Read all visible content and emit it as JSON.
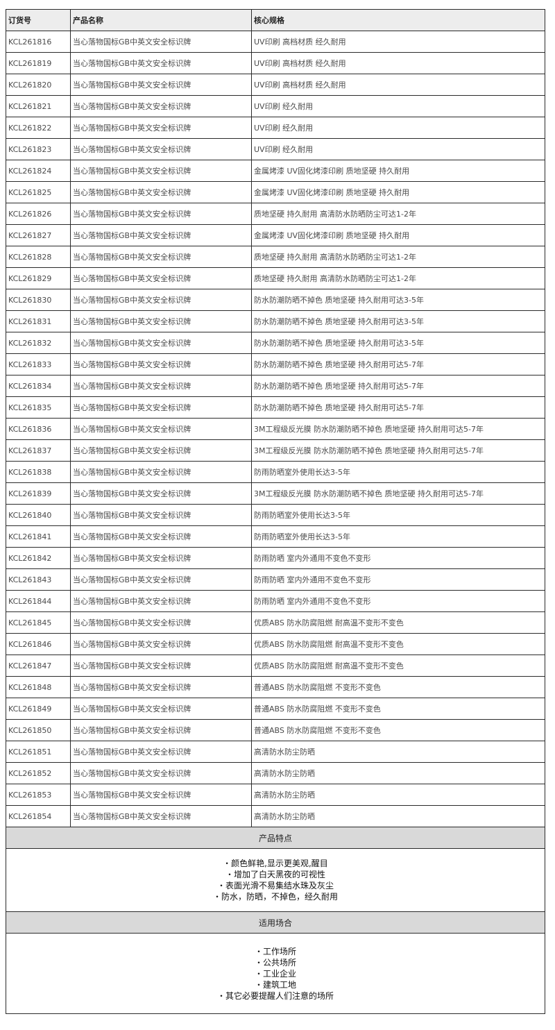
{
  "headers": [
    "订货号",
    "产品名称",
    "核心规格"
  ],
  "rows": [
    [
      "KCL261816",
      "当心落物国标GB中英文安全标识牌",
      "UV印刷 高档材质 经久耐用"
    ],
    [
      "KCL261819",
      "当心落物国标GB中英文安全标识牌",
      "UV印刷 高档材质 经久耐用"
    ],
    [
      "KCL261820",
      "当心落物国标GB中英文安全标识牌",
      "UV印刷 高档材质 经久耐用"
    ],
    [
      "KCL261821",
      "当心落物国标GB中英文安全标识牌",
      "UV印刷 经久耐用"
    ],
    [
      "KCL261822",
      "当心落物国标GB中英文安全标识牌",
      "UV印刷 经久耐用"
    ],
    [
      "KCL261823",
      "当心落物国标GB中英文安全标识牌",
      "UV印刷 经久耐用"
    ],
    [
      "KCL261824",
      "当心落物国标GB中英文安全标识牌",
      "金属烤漆 UV固化烤漆印刷 质地坚硬 持久耐用"
    ],
    [
      "KCL261825",
      "当心落物国标GB中英文安全标识牌",
      "金属烤漆 UV固化烤漆印刷 质地坚硬 持久耐用"
    ],
    [
      "KCL261826",
      "当心落物国标GB中英文安全标识牌",
      "质地坚硬 持久耐用 高清防水防晒防尘可达1-2年"
    ],
    [
      "KCL261827",
      "当心落物国标GB中英文安全标识牌",
      "金属烤漆 UV固化烤漆印刷 质地坚硬 持久耐用"
    ],
    [
      "KCL261828",
      "当心落物国标GB中英文安全标识牌",
      "质地坚硬 持久耐用 高清防水防晒防尘可达1-2年"
    ],
    [
      "KCL261829",
      "当心落物国标GB中英文安全标识牌",
      "质地坚硬 持久耐用 高清防水防晒防尘可达1-2年"
    ],
    [
      "KCL261830",
      "当心落物国标GB中英文安全标识牌",
      "防水防潮防晒不掉色 质地坚硬 持久耐用可达3-5年"
    ],
    [
      "KCL261831",
      "当心落物国标GB中英文安全标识牌",
      "防水防潮防晒不掉色 质地坚硬 持久耐用可达3-5年"
    ],
    [
      "KCL261832",
      "当心落物国标GB中英文安全标识牌",
      "防水防潮防晒不掉色 质地坚硬 持久耐用可达3-5年"
    ],
    [
      "KCL261833",
      "当心落物国标GB中英文安全标识牌",
      "防水防潮防晒不掉色 质地坚硬 持久耐用可达5-7年"
    ],
    [
      "KCL261834",
      "当心落物国标GB中英文安全标识牌",
      "防水防潮防晒不掉色 质地坚硬 持久耐用可达5-7年"
    ],
    [
      "KCL261835",
      "当心落物国标GB中英文安全标识牌",
      "防水防潮防晒不掉色 质地坚硬 持久耐用可达5-7年"
    ],
    [
      "KCL261836",
      "当心落物国标GB中英文安全标识牌",
      "3M工程级反光膜 防水防潮防晒不掉色 质地坚硬 持久耐用可达5-7年"
    ],
    [
      "KCL261837",
      "当心落物国标GB中英文安全标识牌",
      "3M工程级反光膜 防水防潮防晒不掉色 质地坚硬 持久耐用可达5-7年"
    ],
    [
      "KCL261838",
      "当心落物国标GB中英文安全标识牌",
      "防雨防晒室外使用长达3-5年"
    ],
    [
      "KCL261839",
      "当心落物国标GB中英文安全标识牌",
      "3M工程级反光膜 防水防潮防晒不掉色 质地坚硬 持久耐用可达5-7年"
    ],
    [
      "KCL261840",
      "当心落物国标GB中英文安全标识牌",
      "防雨防晒室外使用长达3-5年"
    ],
    [
      "KCL261841",
      "当心落物国标GB中英文安全标识牌",
      "防雨防晒室外使用长达3-5年"
    ],
    [
      "KCL261842",
      "当心落物国标GB中英文安全标识牌",
      "防雨防晒 室内外通用不变色不变形"
    ],
    [
      "KCL261843",
      "当心落物国标GB中英文安全标识牌",
      "防雨防晒 室内外通用不变色不变形"
    ],
    [
      "KCL261844",
      "当心落物国标GB中英文安全标识牌",
      "防雨防晒 室内外通用不变色不变形"
    ],
    [
      "KCL261845",
      "当心落物国标GB中英文安全标识牌",
      "优质ABS 防水防腐阻燃 耐高温不变形不变色"
    ],
    [
      "KCL261846",
      "当心落物国标GB中英文安全标识牌",
      "优质ABS 防水防腐阻燃 耐高温不变形不变色"
    ],
    [
      "KCL261847",
      "当心落物国标GB中英文安全标识牌",
      "优质ABS 防水防腐阻燃 耐高温不变形不变色"
    ],
    [
      "KCL261848",
      "当心落物国标GB中英文安全标识牌",
      "普通ABS 防水防腐阻燃 不变形不变色"
    ],
    [
      "KCL261849",
      "当心落物国标GB中英文安全标识牌",
      "普通ABS 防水防腐阻燃 不变形不变色"
    ],
    [
      "KCL261850",
      "当心落物国标GB中英文安全标识牌",
      "普通ABS 防水防腐阻燃 不变形不变色"
    ],
    [
      "KCL261851",
      "当心落物国标GB中英文安全标识牌",
      "高清防水防尘防晒"
    ],
    [
      "KCL261852",
      "当心落物国标GB中英文安全标识牌",
      "高清防水防尘防晒"
    ],
    [
      "KCL261853",
      "当心落物国标GB中英文安全标识牌",
      "高清防水防尘防晒"
    ],
    [
      "KCL261854",
      "当心落物国标GB中英文安全标识牌",
      "高清防水防尘防晒"
    ]
  ],
  "features": {
    "title": "产品特点",
    "items": [
      "・颜色鲜艳,显示更美观,醒目",
      "・增加了白天黑夜的可视性",
      "・表面光滑不易集结水珠及灰尘",
      "・防水，防晒，不掉色，经久耐用"
    ]
  },
  "applications": {
    "title": "适用场合",
    "items": [
      "・工作场所",
      "・公共场所",
      "・工业企业",
      "・建筑工地",
      "・其它必要提醒人们注意的场所"
    ]
  }
}
